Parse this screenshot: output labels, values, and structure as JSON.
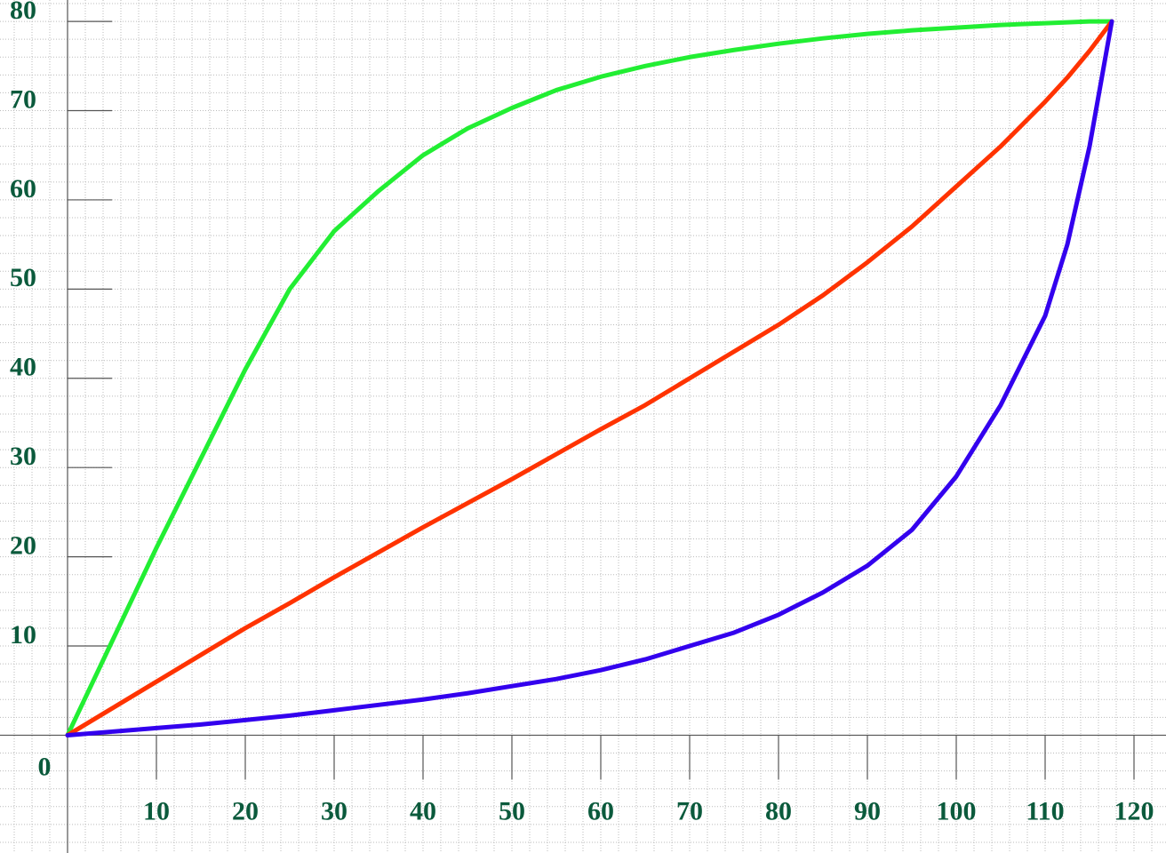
{
  "chart_data": {
    "type": "line",
    "x": [
      0,
      5,
      10,
      15,
      20,
      25,
      30,
      35,
      40,
      45,
      50,
      55,
      60,
      65,
      70,
      75,
      80,
      85,
      90,
      95,
      100,
      105,
      110,
      112.5,
      115,
      117.5
    ],
    "series": [
      {
        "color": "#22ee33",
        "values": [
          0,
          10.5,
          21,
          31,
          41,
          50,
          56.5,
          61,
          65,
          68,
          70.3,
          72.3,
          73.8,
          75,
          76,
          76.8,
          77.5,
          78.1,
          78.6,
          79,
          79.3,
          79.6,
          79.8,
          79.9,
          80,
          80
        ]
      },
      {
        "color": "#ff3300",
        "values": [
          0,
          3,
          6,
          9,
          12,
          14.8,
          17.7,
          20.5,
          23.3,
          26,
          28.7,
          31.5,
          34.3,
          37,
          40,
          43,
          46,
          49.3,
          53,
          57,
          61.5,
          66,
          71,
          73.7,
          76.7,
          80
        ]
      },
      {
        "color": "#3300ee",
        "values": [
          0,
          0.4,
          0.8,
          1.2,
          1.7,
          2.2,
          2.8,
          3.4,
          4,
          4.7,
          5.5,
          6.3,
          7.3,
          8.5,
          10,
          11.5,
          13.5,
          16,
          19,
          23,
          29,
          37,
          47,
          55,
          66,
          80
        ]
      }
    ],
    "xlim": [
      -7.6,
      123.6
    ],
    "ylim": [
      -13.2,
      82.4
    ],
    "xticks": [
      10,
      20,
      30,
      40,
      50,
      60,
      70,
      80,
      90,
      100,
      110,
      120
    ],
    "yticks": [
      0,
      10,
      20,
      30,
      40,
      50,
      60,
      70,
      80
    ],
    "grid": true
  }
}
